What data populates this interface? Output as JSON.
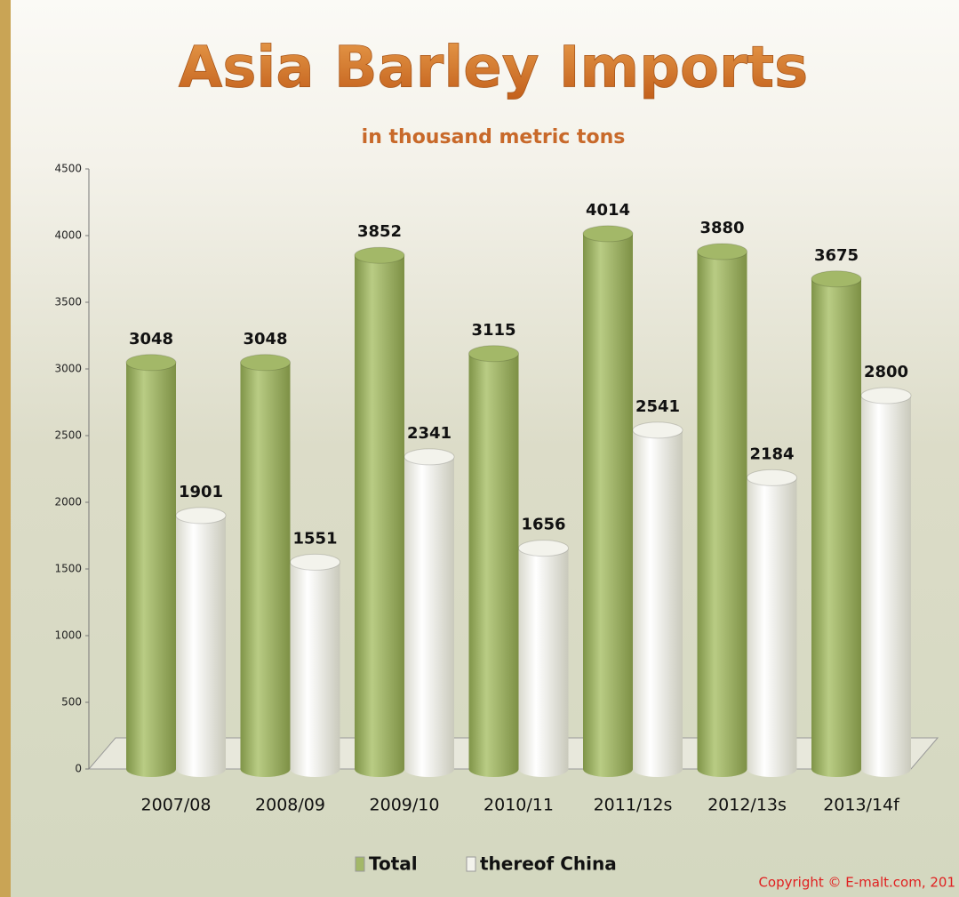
{
  "chart_data": {
    "type": "bar",
    "title": "Asia Barley Imports",
    "subtitle": "in thousand metric tons",
    "categories": [
      "2007/08",
      "2008/09",
      "2009/10",
      "2010/11",
      "2011/12s",
      "2012/13s",
      "2013/14f"
    ],
    "series": [
      {
        "name": "Total",
        "color": "#a3b868",
        "values": [
          3048,
          3048,
          3852,
          3115,
          4014,
          3880,
          3675
        ]
      },
      {
        "name": "thereof China",
        "color": "#f3f3ec",
        "values": [
          1901,
          1551,
          2341,
          1656,
          2541,
          2184,
          2800
        ]
      }
    ],
    "ylim": [
      0,
      4500
    ],
    "yticks": [
      0,
      500,
      1000,
      1500,
      2000,
      2500,
      3000,
      3500,
      4000,
      4500
    ],
    "annotation": "Copyright © E-malt.com, 201"
  }
}
